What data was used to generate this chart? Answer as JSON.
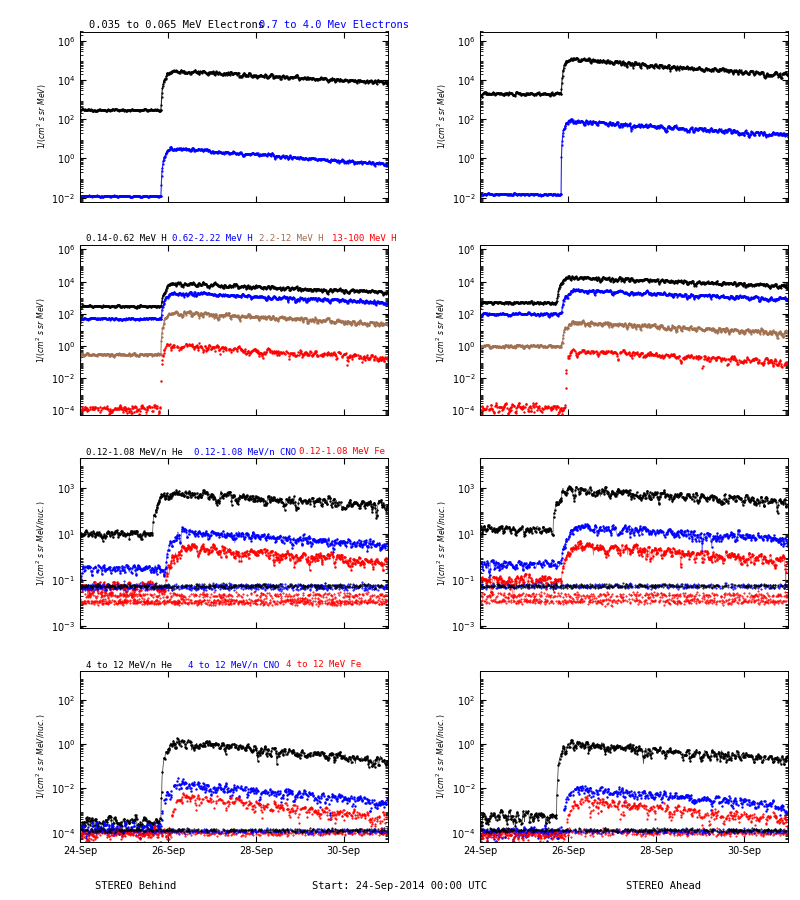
{
  "title_top_black": "0.035 to 0.065 MeV Electrons",
  "title_top_blue": "0.7 to 4.0 Mev Electrons",
  "title_row2_1": "0.14-0.62 MeV H",
  "title_row2_2": "0.62-2.22 MeV H",
  "title_row2_3": "2.2-12 MeV H",
  "title_row2_4": "13-100 MeV H",
  "title_row3_1": "0.12-1.08 MeV/n He",
  "title_row3_2": "0.12-1.08 MeV/n CNO",
  "title_row3_3": "0.12-1.08 MeV Fe",
  "title_row4_1": "4 to 12 MeV/n He",
  "title_row4_2": "4 to 12 MeV/n CNO",
  "title_row4_3": "4 to 12 MeV Fe",
  "xlabel_left": "STEREO Behind",
  "xlabel_center": "Start: 24-Sep-2014 00:00 UTC",
  "xlabel_right": "STEREO Ahead",
  "xticklabels": [
    "24-Sep",
    "26-Sep",
    "28-Sep",
    "30-Sep"
  ],
  "row1_ylim": [
    0.006,
    3000000.0
  ],
  "row1_yticks": [
    0.01,
    1,
    100,
    10000,
    1000000
  ],
  "row2_ylim": [
    5e-05,
    2000000.0
  ],
  "row2_yticks": [
    0.0001,
    0.01,
    1,
    100,
    10000,
    1000000
  ],
  "row3_ylim": [
    0.0008,
    20000.0
  ],
  "row3_yticks": [
    0.001,
    0.1,
    10,
    1000
  ],
  "row4_ylim": [
    4e-05,
    2000.0
  ],
  "row4_yticks": [
    0.0001,
    0.01,
    1,
    100
  ],
  "ndays": 7,
  "event_day": 1.85
}
